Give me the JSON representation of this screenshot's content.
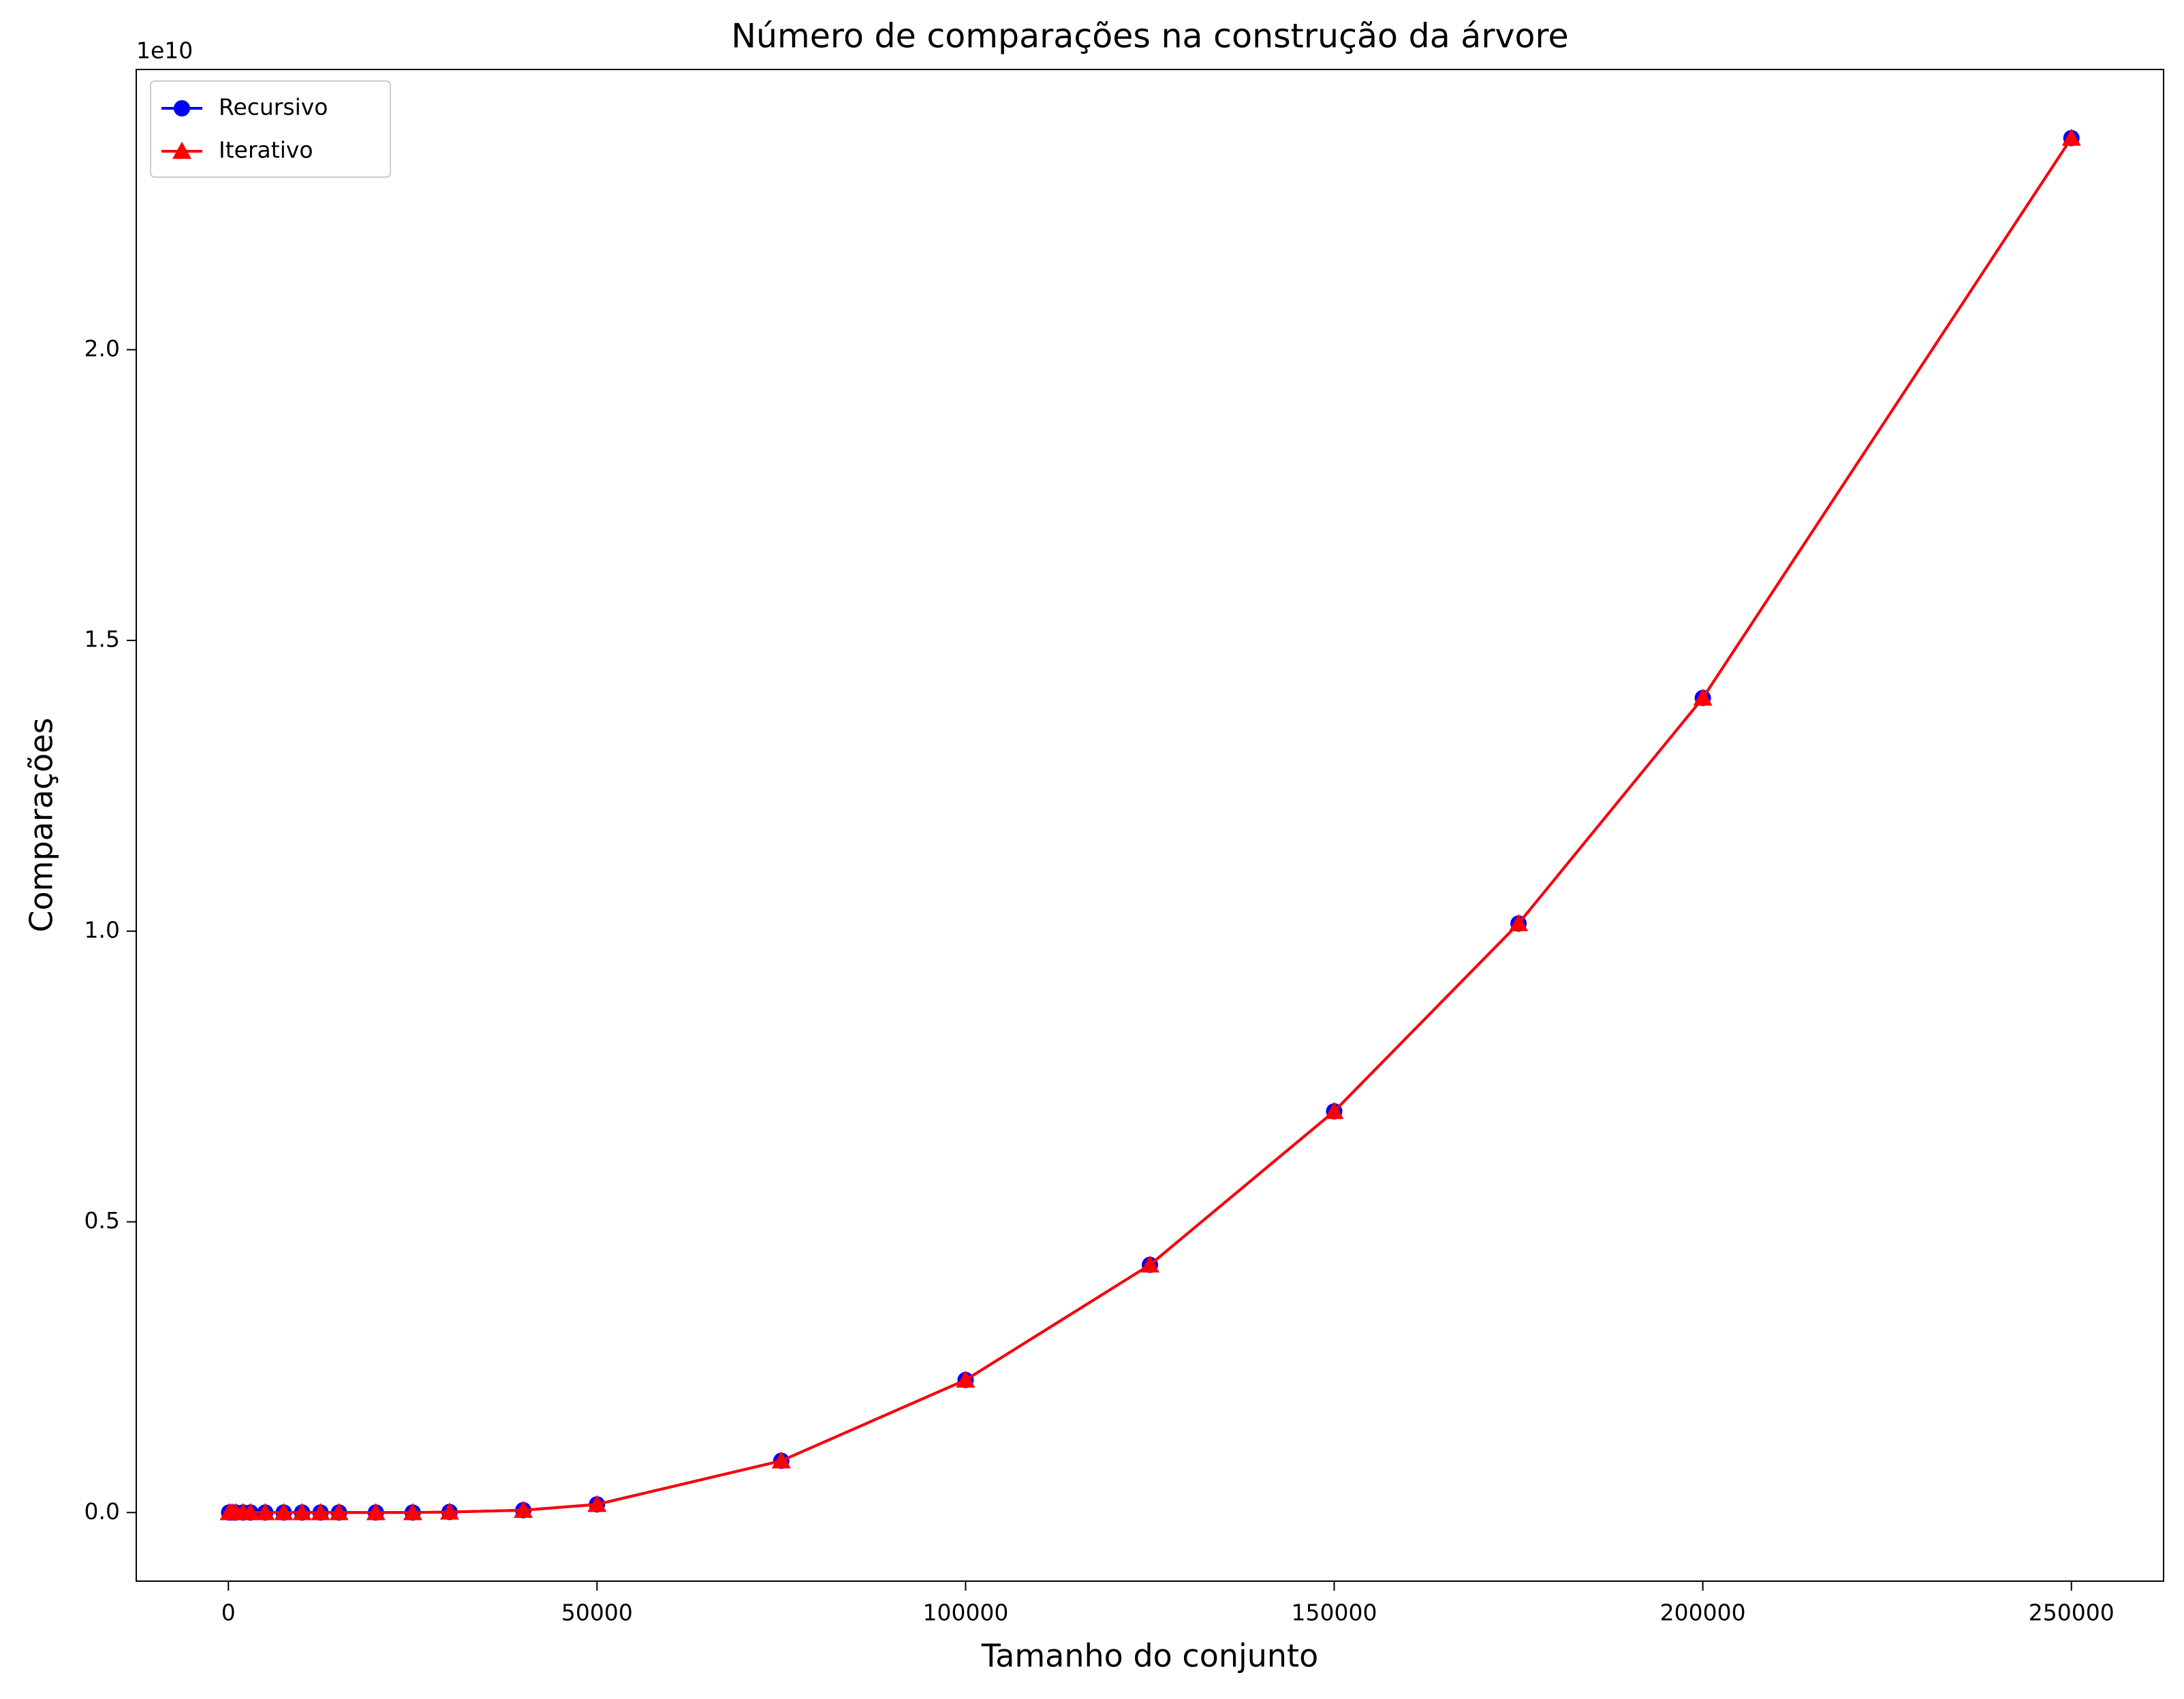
{
  "chart_data": {
    "type": "line",
    "title": "Número de comparações na construção da árvore",
    "xlabel": "Tamanho do conjunto",
    "ylabel": "Comparações",
    "y_offset_label": "1e10",
    "x": [
      100,
      500,
      1000,
      2000,
      3000,
      5000,
      7500,
      10000,
      12500,
      15000,
      20000,
      25000,
      30000,
      40000,
      50000,
      75000,
      100000,
      125000,
      150000,
      175000,
      200000,
      250000
    ],
    "series": [
      {
        "name": "Recursivo",
        "color": "#0000ff",
        "marker": "circle",
        "values": [
          0,
          0,
          0,
          0,
          0,
          0,
          0,
          0,
          0,
          0,
          0,
          0,
          0.001,
          0.004,
          0.014,
          0.089,
          0.228,
          0.426,
          0.69,
          1.013,
          1.401,
          2.364
        ]
      },
      {
        "name": "Iterativo",
        "color": "#ff0000",
        "marker": "triangle",
        "values": [
          0,
          0,
          0,
          0,
          0,
          0,
          0,
          0,
          0,
          0,
          0,
          0,
          0.001,
          0.004,
          0.014,
          0.089,
          0.228,
          0.426,
          0.69,
          1.013,
          1.401,
          2.364
        ]
      }
    ],
    "xlim": [
      -12500,
      262500
    ],
    "xticks": [
      0,
      50000,
      100000,
      150000,
      200000,
      250000
    ],
    "ylim": [
      -0.118,
      2.482
    ],
    "yticks": [
      {
        "value": 0,
        "label": "0.0"
      },
      0.5,
      {
        "value": 1,
        "label": "1.0"
      },
      1.5,
      {
        "value": 2,
        "label": "2.0"
      }
    ],
    "legend": "upper left",
    "grid": false
  }
}
